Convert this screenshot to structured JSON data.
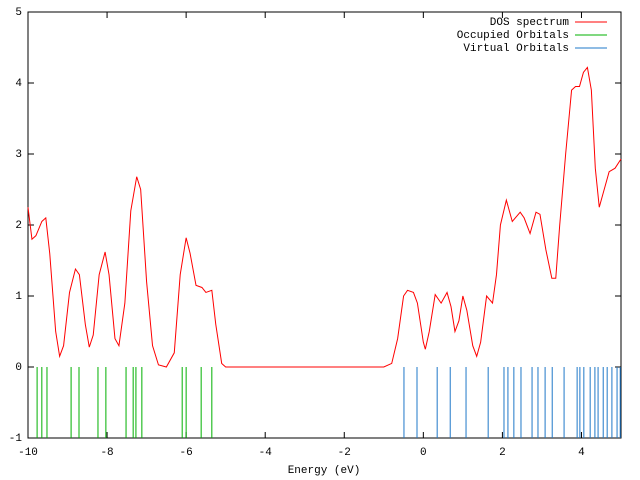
{
  "chart_data": {
    "type": "line",
    "xlabel": "Energy (eV)",
    "xlim": [
      -10,
      5
    ],
    "ylim": [
      -1,
      5
    ],
    "xticks": [
      -10,
      -8,
      -6,
      -4,
      -2,
      0,
      2,
      4
    ],
    "yticks": [
      -1,
      0,
      1,
      2,
      3,
      4,
      5
    ],
    "legend": "top-right",
    "series": [
      {
        "name": "DOS spectrum",
        "type": "line",
        "color": "#ff0000",
        "x": [
          -10,
          -9.9,
          -9.8,
          -9.65,
          -9.55,
          -9.45,
          -9.3,
          -9.2,
          -9.1,
          -8.95,
          -8.8,
          -8.7,
          -8.55,
          -8.45,
          -8.35,
          -8.2,
          -8.05,
          -7.95,
          -7.8,
          -7.7,
          -7.55,
          -7.4,
          -7.25,
          -7.15,
          -7.0,
          -6.85,
          -6.7,
          -6.5,
          -6.3,
          -6.15,
          -6.0,
          -5.9,
          -5.75,
          -5.6,
          -5.5,
          -5.35,
          -5.25,
          -5.1,
          -5.0,
          -3,
          -1,
          -0.8,
          -0.65,
          -0.5,
          -0.4,
          -0.25,
          -0.15,
          0.0,
          0.05,
          0.15,
          0.3,
          0.45,
          0.6,
          0.7,
          0.8,
          0.9,
          1.0,
          1.1,
          1.25,
          1.35,
          1.45,
          1.6,
          1.75,
          1.85,
          1.95,
          2.1,
          2.25,
          2.45,
          2.55,
          2.7,
          2.85,
          2.95,
          3.1,
          3.25,
          3.35,
          3.45,
          3.6,
          3.75,
          3.85,
          3.95,
          4.05,
          4.15,
          4.25,
          4.35,
          4.45,
          4.55,
          4.7,
          4.85,
          5.0
        ],
        "values": [
          2.25,
          1.8,
          1.85,
          2.05,
          2.1,
          1.6,
          0.5,
          0.15,
          0.3,
          1.05,
          1.38,
          1.3,
          0.6,
          0.28,
          0.45,
          1.3,
          1.62,
          1.3,
          0.4,
          0.3,
          0.9,
          2.2,
          2.68,
          2.5,
          1.2,
          0.3,
          0.03,
          0,
          0.2,
          1.3,
          1.82,
          1.6,
          1.15,
          1.12,
          1.05,
          1.08,
          0.6,
          0.05,
          0,
          0,
          0,
          0.05,
          0.4,
          1.0,
          1.08,
          1.05,
          0.9,
          0.35,
          0.25,
          0.5,
          1.02,
          0.9,
          1.05,
          0.85,
          0.5,
          0.65,
          1.0,
          0.8,
          0.3,
          0.15,
          0.35,
          1.0,
          0.9,
          1.3,
          2.0,
          2.35,
          2.05,
          2.18,
          2.1,
          1.88,
          2.18,
          2.15,
          1.65,
          1.25,
          1.25,
          2.0,
          3.0,
          3.9,
          3.95,
          3.95,
          4.15,
          4.22,
          3.9,
          2.8,
          2.25,
          2.45,
          2.75,
          2.8,
          2.93
        ]
      },
      {
        "name": "Occupied Orbitals",
        "type": "impulse",
        "color": "#00b000",
        "x": [
          -9.77,
          -9.65,
          -9.52,
          -8.91,
          -8.71,
          -8.23,
          -8.03,
          -7.52,
          -7.34,
          -7.27,
          -7.12,
          -6.1,
          -6.0,
          -5.62,
          -5.35
        ],
        "values": [
          -1,
          -1,
          -1,
          -1,
          -1,
          -1,
          -1,
          -1,
          -1,
          -1,
          -1,
          -1,
          -1,
          -1,
          -1
        ]
      },
      {
        "name": "Virtual Orbitals",
        "type": "impulse",
        "color": "#1f78c8",
        "x": [
          -0.49,
          -0.16,
          0.35,
          0.68,
          1.08,
          1.64,
          2.04,
          2.14,
          2.29,
          2.47,
          2.75,
          2.9,
          3.08,
          3.26,
          3.56,
          3.89,
          3.96,
          4.06,
          4.22,
          4.34,
          4.42,
          4.55,
          4.65,
          4.77,
          4.9,
          4.98
        ],
        "values": [
          -1,
          -1,
          -1,
          -1,
          -1,
          -1,
          -1,
          -1,
          -1,
          -1,
          -1,
          -1,
          -1,
          -1,
          -1,
          -1,
          -1,
          -1,
          -1,
          -1,
          -1,
          -1,
          -1,
          -1,
          -1,
          -1
        ]
      }
    ]
  }
}
